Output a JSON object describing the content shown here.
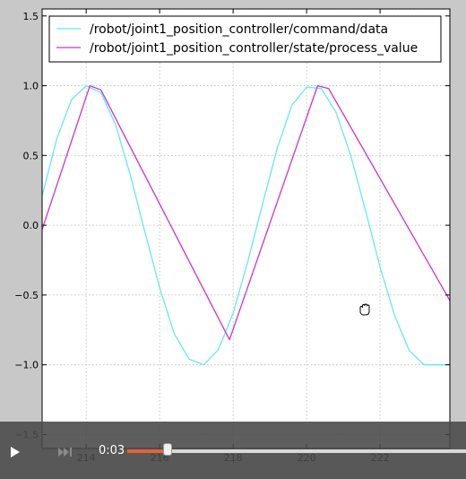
{
  "chart_data": {
    "type": "line",
    "title": "",
    "xlabel": "",
    "ylabel": "",
    "xlim": [
      212.8,
      223.9
    ],
    "ylim": [
      -1.6,
      1.55
    ],
    "x_ticks": [
      214,
      216,
      218,
      220,
      222
    ],
    "x_tick_labels": [
      "214",
      "216",
      "218",
      "220",
      "222"
    ],
    "y_ticks": [
      -1.5,
      -1.0,
      -0.5,
      0.0,
      0.5,
      1.0,
      1.5
    ],
    "y_tick_labels": [
      "−1.5",
      "−1.0",
      "−0.5",
      "0.0",
      "0.5",
      "1.0",
      "1.5"
    ],
    "grid": true,
    "legend_position": "top",
    "series": [
      {
        "name": "/robot/joint1_position_controller/command/data",
        "color": "#66e8ee",
        "x": [
          212.8,
          213.2,
          213.6,
          214.0,
          214.4,
          214.8,
          215.2,
          215.6,
          216.0,
          216.4,
          216.8,
          217.2,
          217.6,
          218.0,
          218.4,
          218.8,
          219.2,
          219.6,
          220.0,
          220.4,
          220.8,
          221.2,
          221.6,
          222.0,
          222.4,
          222.8,
          223.2,
          223.6,
          223.9
        ],
        "y": [
          0.21,
          0.62,
          0.9,
          1.0,
          0.95,
          0.72,
          0.36,
          -0.05,
          -0.45,
          -0.78,
          -0.96,
          -1.0,
          -0.89,
          -0.63,
          -0.26,
          0.15,
          0.55,
          0.86,
          0.99,
          0.98,
          0.81,
          0.5,
          0.11,
          -0.3,
          -0.65,
          -0.9,
          -1.0,
          -1.0,
          -1.0
        ]
      },
      {
        "name": "/robot/joint1_position_controller/state/process_value",
        "color": "#cc33cc",
        "x": [
          212.8,
          214.1,
          214.4,
          217.9,
          220.3,
          220.6,
          223.9
        ],
        "y": [
          -0.03,
          1.0,
          0.97,
          -0.82,
          1.0,
          0.98,
          -0.54
        ]
      }
    ]
  },
  "player": {
    "time": "0:03",
    "progress_fraction": 0.12,
    "accent_color": "#e8603a"
  },
  "icons": {
    "play": "play-icon",
    "next": "next-icon",
    "cursor": "grab-hand-icon"
  }
}
